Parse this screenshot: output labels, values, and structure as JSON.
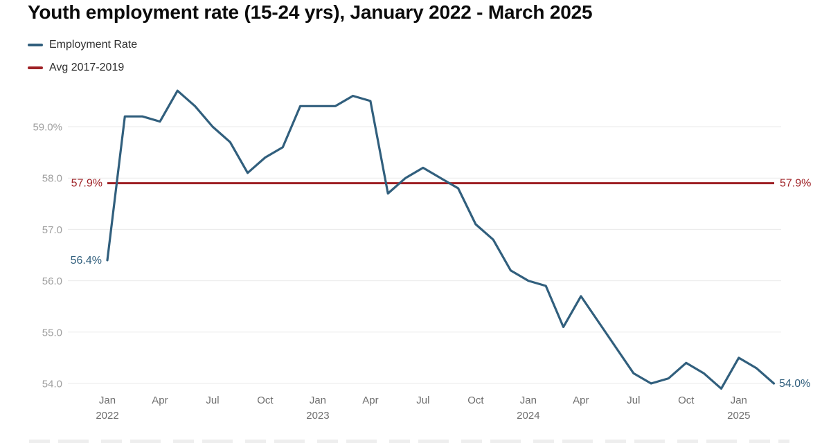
{
  "title": "Youth employment rate (15-24 yrs), January 2022 - March 2025",
  "legend": {
    "items": [
      {
        "label": "Employment Rate",
        "color": "#315f7d"
      },
      {
        "label": "Avg 2017-2019",
        "color": "#9e2025"
      }
    ]
  },
  "chart_data": {
    "type": "line",
    "title": "Youth employment rate (15-24 yrs), January 2022 - March 2025",
    "x_start": "Jan 2022",
    "x_end": "Mar 2025",
    "frequency": "monthly",
    "series": [
      {
        "name": "Employment Rate",
        "color": "#315f7d",
        "values": [
          56.4,
          59.2,
          59.2,
          59.1,
          59.7,
          59.4,
          59.0,
          58.7,
          58.1,
          58.4,
          58.6,
          59.4,
          59.4,
          59.4,
          59.6,
          59.5,
          57.7,
          58.0,
          58.2,
          58.0,
          57.8,
          57.1,
          56.8,
          56.2,
          56.0,
          55.9,
          55.1,
          55.7,
          55.2,
          54.7,
          54.2,
          54.0,
          54.1,
          54.4,
          54.2,
          53.9,
          54.5,
          54.3,
          54.0
        ]
      },
      {
        "name": "Avg 2017-2019",
        "color": "#9e2025",
        "constant_value": 57.9
      }
    ],
    "y_ticks": [
      {
        "value": 59.0,
        "label": "59.0%"
      },
      {
        "value": 58.0,
        "label": "58.0"
      },
      {
        "value": 57.0,
        "label": "57.0"
      },
      {
        "value": 56.0,
        "label": "56.0"
      },
      {
        "value": 55.0,
        "label": "55.0"
      },
      {
        "value": 54.0,
        "label": "54.0"
      }
    ],
    "x_ticks": [
      {
        "month_index": 0,
        "label": "Jan",
        "year": "2022"
      },
      {
        "month_index": 3,
        "label": "Apr"
      },
      {
        "month_index": 6,
        "label": "Jul"
      },
      {
        "month_index": 9,
        "label": "Oct"
      },
      {
        "month_index": 12,
        "label": "Jan",
        "year": "2023"
      },
      {
        "month_index": 15,
        "label": "Apr"
      },
      {
        "month_index": 18,
        "label": "Jul"
      },
      {
        "month_index": 21,
        "label": "Oct"
      },
      {
        "month_index": 24,
        "label": "Jan",
        "year": "2024"
      },
      {
        "month_index": 27,
        "label": "Apr"
      },
      {
        "month_index": 30,
        "label": "Jul"
      },
      {
        "month_index": 33,
        "label": "Oct"
      },
      {
        "month_index": 36,
        "label": "Jan",
        "year": "2025"
      }
    ],
    "annotations": {
      "first_value": "56.4%",
      "last_value": "54.0%",
      "avg_left": "57.9%",
      "avg_right": "57.9%"
    },
    "ylim": [
      53.6,
      59.9
    ],
    "grid": "horizontal",
    "legend_position": "top-left"
  },
  "colors": {
    "background": "#ffffff",
    "grid": "#e9e9e9",
    "y_tick_text": "#9e9e9e",
    "x_tick_text": "#6e6e6e",
    "title_text": "#0b0b0b",
    "legend_text": "#2f2f2f"
  }
}
